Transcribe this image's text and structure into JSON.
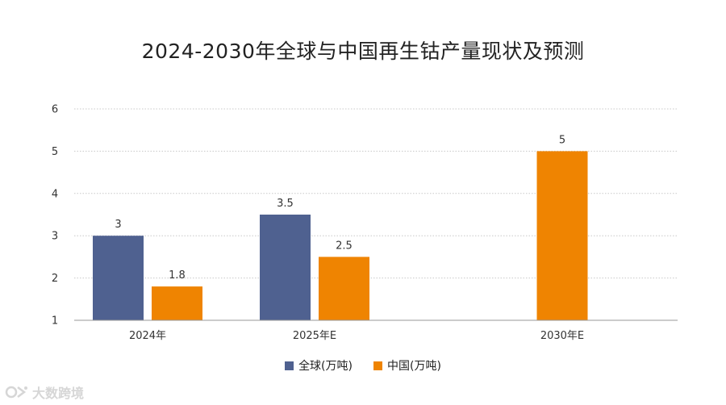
{
  "title": "2024-2030年全球与中国再生钴产量现状及预测",
  "watermark": {
    "text": "大数跨境",
    "icon": "brand-logo-icon"
  },
  "colors": {
    "global": "#4f6190",
    "china": "#ef8401",
    "grid": "#c8c8c8",
    "axis": "#999999"
  },
  "chart_data": {
    "type": "bar",
    "title": "2024-2030年全球与中国再生钴产量现状及预测",
    "categories": [
      "2024年",
      "2025年E",
      "2030年E"
    ],
    "series": [
      {
        "name": "全球(万吨)",
        "values": [
          3,
          3.5,
          null
        ],
        "labels": [
          "3",
          "3.5",
          ""
        ]
      },
      {
        "name": "中国(万吨)",
        "values": [
          1.8,
          2.5,
          5
        ],
        "labels": [
          "1.8",
          "2.5",
          "5"
        ]
      }
    ],
    "yticks": [
      "1",
      "2",
      "3",
      "4",
      "5",
      "6"
    ],
    "ylim": [
      1,
      6
    ],
    "grid": true,
    "legend": "bottom"
  }
}
